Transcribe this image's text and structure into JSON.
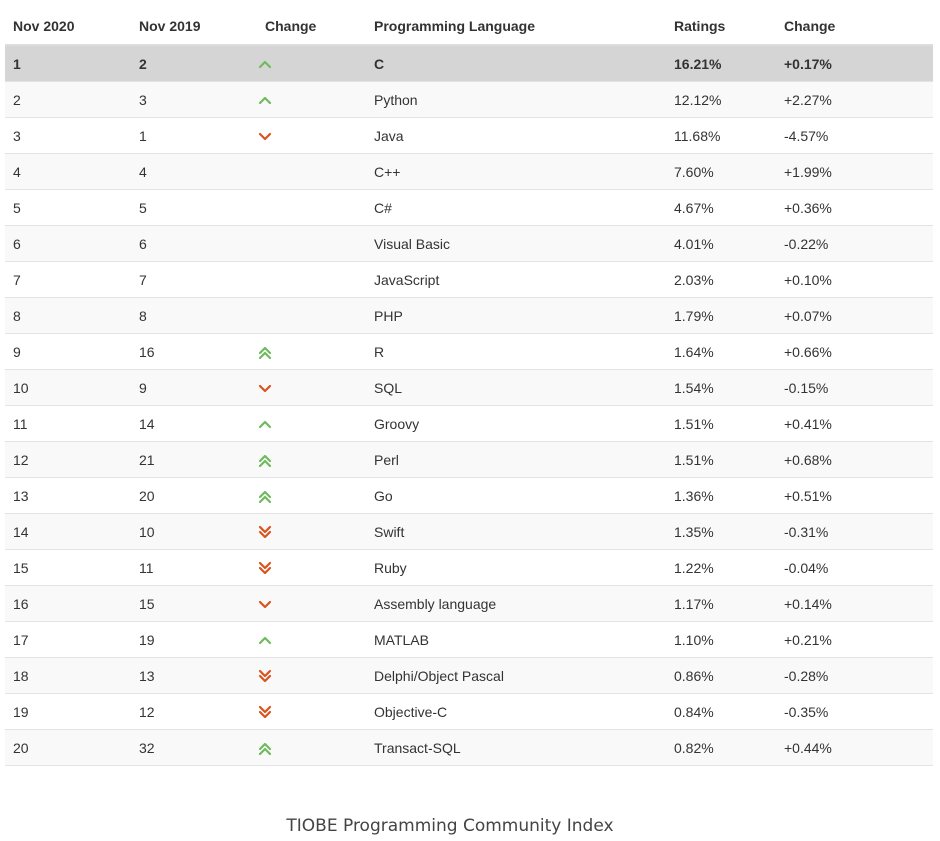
{
  "headers": {
    "current": "Nov 2020",
    "previous": "Nov 2019",
    "change": "Change",
    "language": "Programming Language",
    "ratings": "Ratings",
    "delta": "Change"
  },
  "rows": [
    {
      "current": "1",
      "previous": "2",
      "trend": "up",
      "language": "C",
      "rating": "16.21%",
      "delta": "+0.17%"
    },
    {
      "current": "2",
      "previous": "3",
      "trend": "up",
      "language": "Python",
      "rating": "12.12%",
      "delta": "+2.27%"
    },
    {
      "current": "3",
      "previous": "1",
      "trend": "down",
      "language": "Java",
      "rating": "11.68%",
      "delta": "-4.57%"
    },
    {
      "current": "4",
      "previous": "4",
      "trend": "none",
      "language": "C++",
      "rating": "7.60%",
      "delta": "+1.99%"
    },
    {
      "current": "5",
      "previous": "5",
      "trend": "none",
      "language": "C#",
      "rating": "4.67%",
      "delta": "+0.36%"
    },
    {
      "current": "6",
      "previous": "6",
      "trend": "none",
      "language": "Visual Basic",
      "rating": "4.01%",
      "delta": "-0.22%"
    },
    {
      "current": "7",
      "previous": "7",
      "trend": "none",
      "language": "JavaScript",
      "rating": "2.03%",
      "delta": "+0.10%"
    },
    {
      "current": "8",
      "previous": "8",
      "trend": "none",
      "language": "PHP",
      "rating": "1.79%",
      "delta": "+0.07%"
    },
    {
      "current": "9",
      "previous": "16",
      "trend": "up2",
      "language": "R",
      "rating": "1.64%",
      "delta": "+0.66%"
    },
    {
      "current": "10",
      "previous": "9",
      "trend": "down",
      "language": "SQL",
      "rating": "1.54%",
      "delta": "-0.15%"
    },
    {
      "current": "11",
      "previous": "14",
      "trend": "up",
      "language": "Groovy",
      "rating": "1.51%",
      "delta": "+0.41%"
    },
    {
      "current": "12",
      "previous": "21",
      "trend": "up2",
      "language": "Perl",
      "rating": "1.51%",
      "delta": "+0.68%"
    },
    {
      "current": "13",
      "previous": "20",
      "trend": "up2",
      "language": "Go",
      "rating": "1.36%",
      "delta": "+0.51%"
    },
    {
      "current": "14",
      "previous": "10",
      "trend": "down2",
      "language": "Swift",
      "rating": "1.35%",
      "delta": "-0.31%"
    },
    {
      "current": "15",
      "previous": "11",
      "trend": "down2",
      "language": "Ruby",
      "rating": "1.22%",
      "delta": "-0.04%"
    },
    {
      "current": "16",
      "previous": "15",
      "trend": "down",
      "language": "Assembly language",
      "rating": "1.17%",
      "delta": "+0.14%"
    },
    {
      "current": "17",
      "previous": "19",
      "trend": "up",
      "language": "MATLAB",
      "rating": "1.10%",
      "delta": "+0.21%"
    },
    {
      "current": "18",
      "previous": "13",
      "trend": "down2",
      "language": "Delphi/Object Pascal",
      "rating": "0.86%",
      "delta": "-0.28%"
    },
    {
      "current": "19",
      "previous": "12",
      "trend": "down2",
      "language": "Objective-C",
      "rating": "0.84%",
      "delta": "-0.35%"
    },
    {
      "current": "20",
      "previous": "32",
      "trend": "up2",
      "language": "Transact-SQL",
      "rating": "0.82%",
      "delta": "+0.44%"
    }
  ],
  "caption": "TIOBE Programming Community Index",
  "colors": {
    "up": "#6fba5e",
    "down": "#d9531e",
    "highlight": "#d5d5d5"
  }
}
